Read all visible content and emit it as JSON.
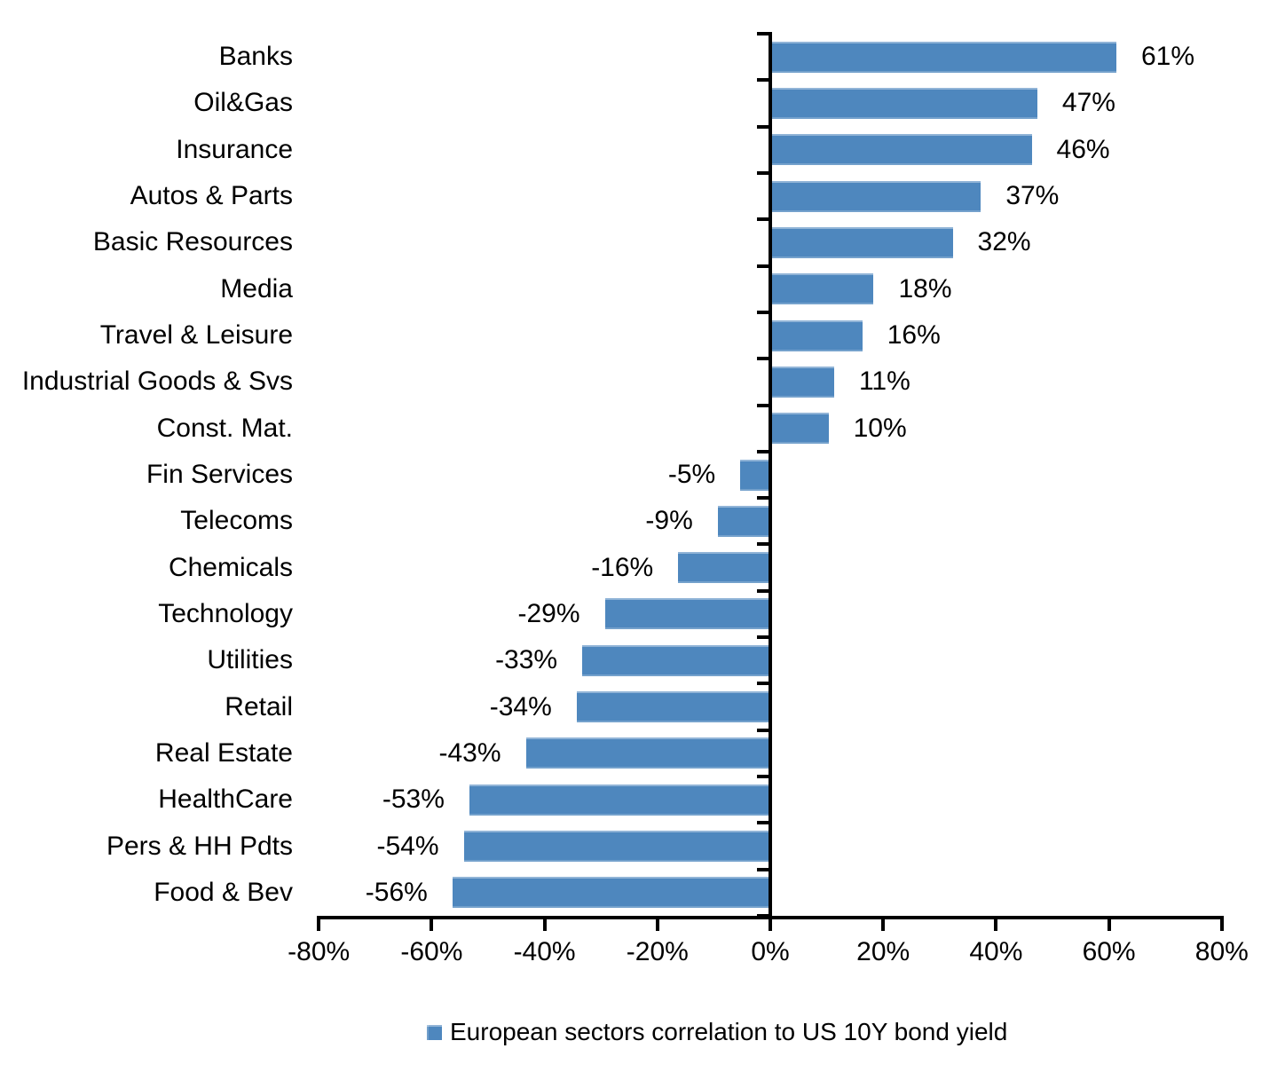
{
  "chart_data": {
    "type": "bar",
    "orientation": "horizontal",
    "title": "",
    "legend": "European sectors correlation to US 10Y bond yield",
    "legend_position": "bottom",
    "categories": [
      "Banks",
      "Oil&Gas",
      "Insurance",
      "Autos & Parts",
      "Basic Resources",
      "Media",
      "Travel & Leisure",
      "Industrial Goods & Svs",
      "Const. Mat.",
      "Fin Services",
      "Telecoms",
      "Chemicals",
      "Technology",
      "Utilities",
      "Retail",
      "Real Estate",
      "HealthCare",
      "Pers & HH Pdts",
      "Food & Bev"
    ],
    "values": [
      61,
      47,
      46,
      37,
      32,
      18,
      16,
      11,
      10,
      -5,
      -9,
      -16,
      -29,
      -33,
      -34,
      -43,
      -53,
      -54,
      -56
    ],
    "labels": [
      "61%",
      "47%",
      "46%",
      "37%",
      "32%",
      "18%",
      "16%",
      "11%",
      "10%",
      "-5%",
      "-9%",
      "-16%",
      "-29%",
      "-33%",
      "-34%",
      "-43%",
      "-53%",
      "-54%",
      "-56%"
    ],
    "xlabel": "",
    "ylabel": "",
    "xlim": [
      -80,
      80
    ],
    "x_tick_values": [
      -80,
      -60,
      -40,
      -20,
      0,
      20,
      40,
      60,
      80
    ],
    "x_tick_labels": [
      "-80%",
      "-60%",
      "-40%",
      "-20%",
      "0%",
      "20%",
      "40%",
      "60%",
      "80%"
    ],
    "grid": false,
    "bar_color": "#4E87BE",
    "axis_color": "#000000",
    "text_color": "#000000"
  }
}
